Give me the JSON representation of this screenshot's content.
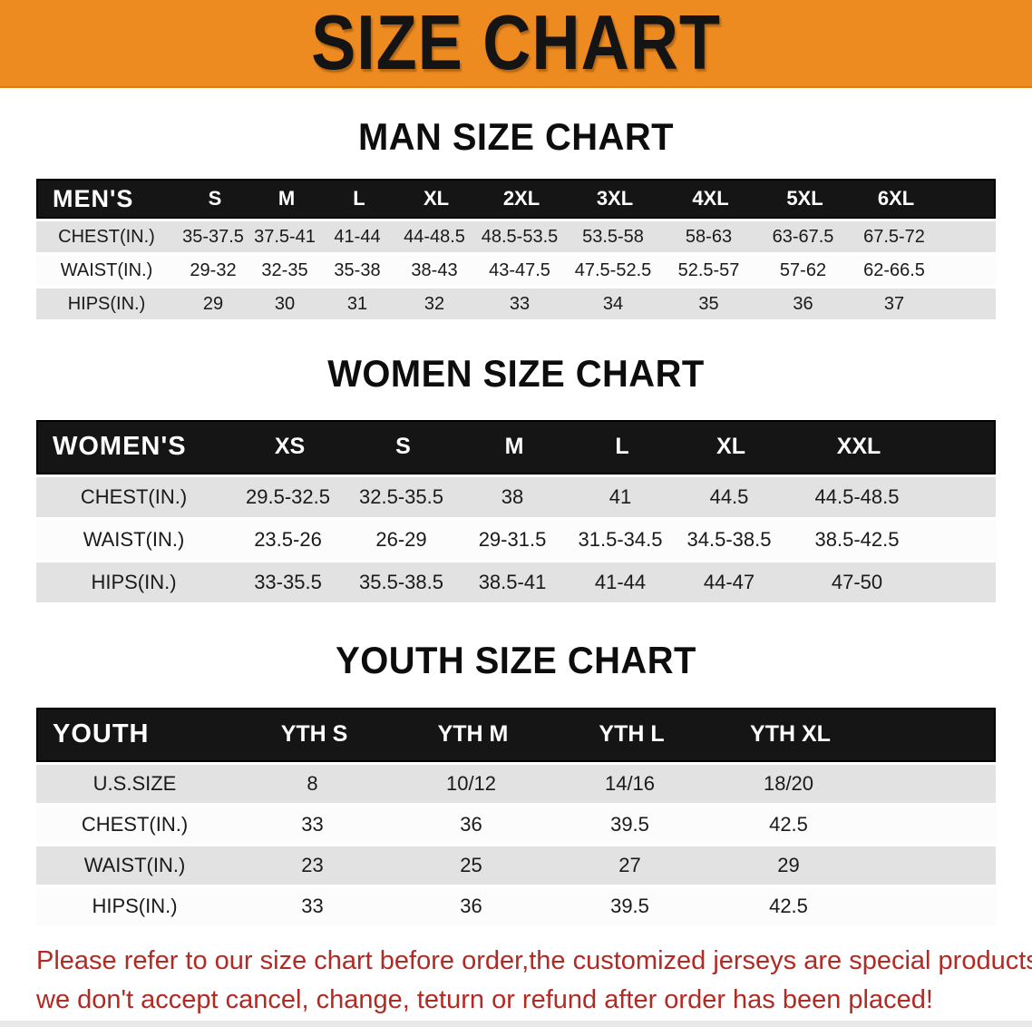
{
  "banner": {
    "title": "SIZE CHART",
    "bg_color": "#ed8a20"
  },
  "sections": [
    {
      "heading": "MAN SIZE CHART",
      "table": {
        "header_label": "MEN'S",
        "columns": [
          "S",
          "M",
          "L",
          "XL",
          "2XL",
          "3XL",
          "4XL",
          "5XL",
          "6XL"
        ],
        "rows": [
          {
            "label": "CHEST(IN.)",
            "values": [
              "35-37.5",
              "37.5-41",
              "41-44",
              "44-48.5",
              "48.5-53.5",
              "53.5-58",
              "58-63",
              "63-67.5",
              "67.5-72"
            ]
          },
          {
            "label": "WAIST(IN.)",
            "values": [
              "29-32",
              "32-35",
              "35-38",
              "38-43",
              "43-47.5",
              "47.5-52.5",
              "52.5-57",
              "57-62",
              "62-66.5"
            ]
          },
          {
            "label": "HIPS(IN.)",
            "values": [
              "29",
              "30",
              "31",
              "32",
              "33",
              "34",
              "35",
              "36",
              "37"
            ]
          }
        ]
      }
    },
    {
      "heading": "WOMEN SIZE CHART",
      "table": {
        "header_label": "WOMEN'S",
        "columns": [
          "XS",
          "S",
          "M",
          "L",
          "XL",
          "XXL"
        ],
        "rows": [
          {
            "label": "CHEST(IN.)",
            "values": [
              "29.5-32.5",
              "32.5-35.5",
              "38",
              "41",
              "44.5",
              "44.5-48.5"
            ]
          },
          {
            "label": "WAIST(IN.)",
            "values": [
              "23.5-26",
              "26-29",
              "29-31.5",
              "31.5-34.5",
              "34.5-38.5",
              "38.5-42.5"
            ]
          },
          {
            "label": "HIPS(IN.)",
            "values": [
              "33-35.5",
              "35.5-38.5",
              "38.5-41",
              "41-44",
              "44-47",
              "47-50"
            ]
          }
        ]
      }
    },
    {
      "heading": "YOUTH SIZE CHART",
      "table": {
        "header_label": "YOUTH",
        "columns": [
          "YTH S",
          "YTH M",
          "YTH L",
          "YTH XL"
        ],
        "rows": [
          {
            "label": "U.S.SIZE",
            "values": [
              "8",
              "10/12",
              "14/16",
              "18/20"
            ]
          },
          {
            "label": "CHEST(IN.)",
            "values": [
              "33",
              "36",
              "39.5",
              "42.5"
            ]
          },
          {
            "label": "WAIST(IN.)",
            "values": [
              "23",
              "25",
              "27",
              "29"
            ]
          },
          {
            "label": "HIPS(IN.)",
            "values": [
              "33",
              "36",
              "39.5",
              "42.5"
            ]
          }
        ]
      }
    }
  ],
  "disclaimer": {
    "line1": "Please refer to our size chart before order,the customized jerseys are special products,",
    "line2": "we don't accept cancel, change, teturn or refund after order has been placed!",
    "color": "#b22a24"
  }
}
